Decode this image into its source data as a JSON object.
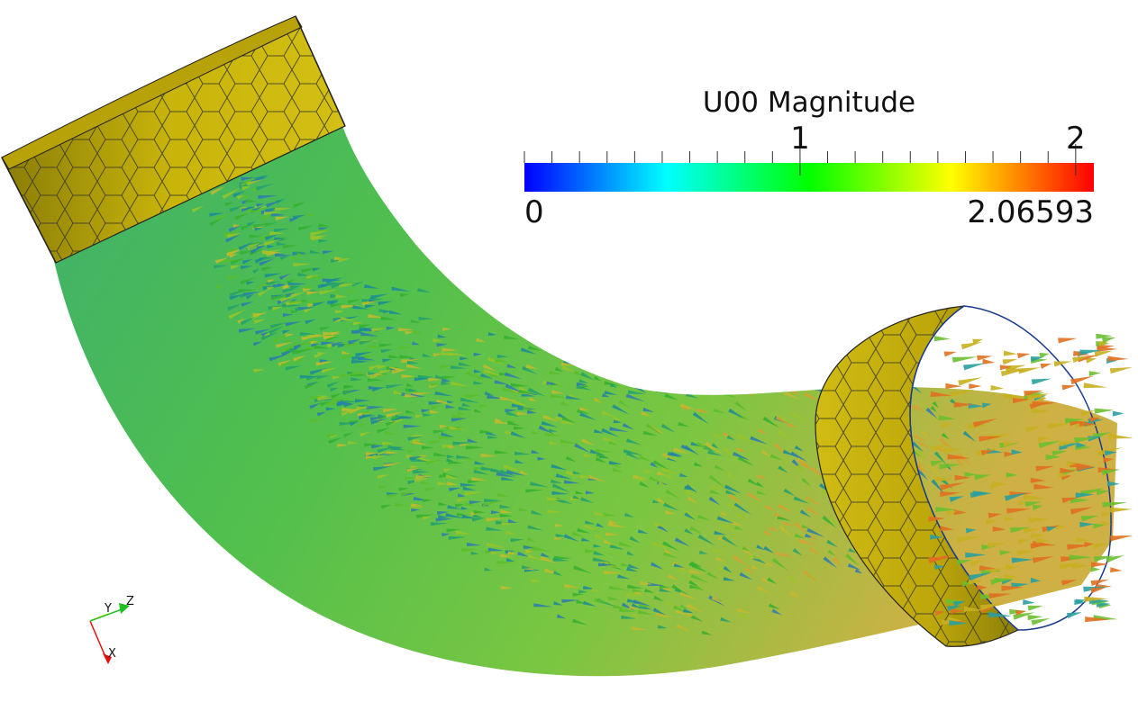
{
  "legend": {
    "title": "U00 Magnitude",
    "min_label": "0",
    "max_label": "2.06593",
    "min_value": 0,
    "max_value": 2.06593,
    "major_ticks": [
      {
        "value": 1,
        "label": "1"
      },
      {
        "value": 2,
        "label": "2"
      }
    ],
    "minor_tick_step": 0.1,
    "colormap": [
      "#0000ff",
      "#00ffff",
      "#00ff00",
      "#ffff00",
      "#ff0000"
    ]
  },
  "orientation_axes": {
    "x_label": "X",
    "y_label": "Y",
    "z_label": "Z",
    "x_color": "#e01010",
    "y_color": "#ffff30",
    "z_color": "#20c020"
  },
  "colors": {
    "wall": "#c9b50a",
    "wall_dark": "#8f800a",
    "mesh_line": "#3a3a2a",
    "glyph_low": "#1a8a9a",
    "glyph_mid": "#33b030",
    "glyph_high": "#e07020"
  }
}
